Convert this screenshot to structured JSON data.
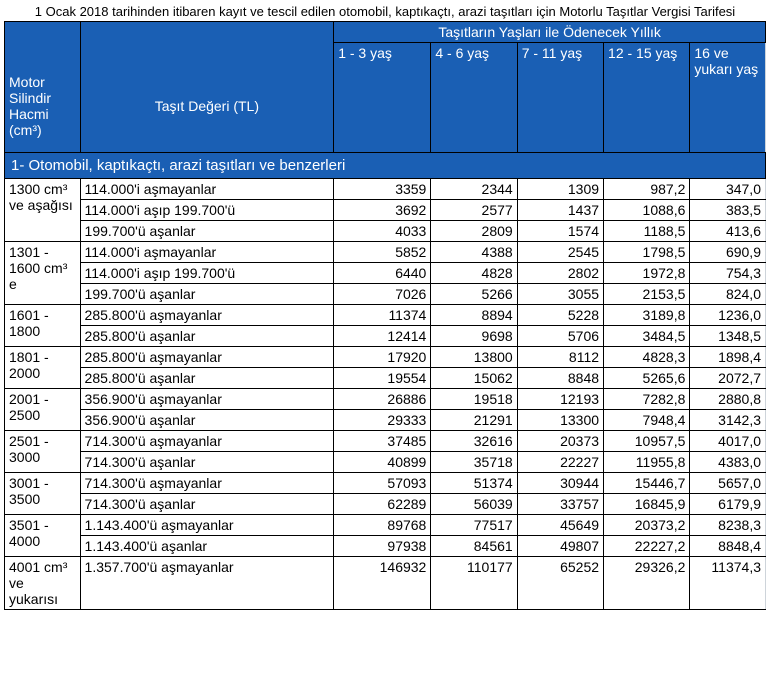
{
  "title": "1 Ocak 2018 tarihinden itibaren kayıt ve tescil edilen otomobil, kaptıkaçtı, arazi taşıtları için Motorlu Taşıtlar Vergisi Tarifesi",
  "header": {
    "engine": "Motor Silindir Hacmi (cm³)",
    "value": "Taşıt Değeri (TL)",
    "group": "Taşıtların Yaşları ile Ödenecek Yıllık",
    "ages": [
      "1 - 3 yaş",
      "4 - 6 yaş",
      "7 - 11 yaş",
      "12 - 15 yaş",
      "16 ve yukarı yaş"
    ]
  },
  "section": "1- Otomobil, kaptıkaçtı, arazi taşıtları ve benzerleri",
  "groups": [
    {
      "engine": "1300 cm³ ve aşağısı",
      "rows": [
        {
          "desc": "114.000'i aşmayanlar",
          "v": [
            "3359",
            "2344",
            "1309",
            "987,2",
            "347,0"
          ]
        },
        {
          "desc": "114.000'i aşıp 199.700'ü",
          "v": [
            "3692",
            "2577",
            "1437",
            "1088,6",
            "383,5"
          ]
        },
        {
          "desc": "199.700'ü aşanlar",
          "v": [
            "4033",
            "2809",
            "1574",
            "1188,5",
            "413,6"
          ]
        }
      ]
    },
    {
      "engine": "1301 - 1600 cm³ e",
      "rows": [
        {
          "desc": "114.000'i aşmayanlar",
          "v": [
            "5852",
            "4388",
            "2545",
            "1798,5",
            "690,9"
          ]
        },
        {
          "desc": "114.000'i aşıp 199.700'ü",
          "v": [
            "6440",
            "4828",
            "2802",
            "1972,8",
            "754,3"
          ]
        },
        {
          "desc": "199.700'ü aşanlar",
          "v": [
            "7026",
            "5266",
            "3055",
            "2153,5",
            "824,0"
          ]
        }
      ]
    },
    {
      "engine": "1601 - 1800",
      "rows": [
        {
          "desc": "285.800'ü aşmayanlar",
          "v": [
            "11374",
            "8894",
            "5228",
            "3189,8",
            "1236,0"
          ]
        },
        {
          "desc": "285.800'ü aşanlar",
          "v": [
            "12414",
            "9698",
            "5706",
            "3484,5",
            "1348,5"
          ]
        }
      ]
    },
    {
      "engine": "1801 - 2000",
      "rows": [
        {
          "desc": "285.800'ü aşmayanlar",
          "v": [
            "17920",
            "13800",
            "8112",
            "4828,3",
            "1898,4"
          ]
        },
        {
          "desc": "285.800'ü aşanlar",
          "v": [
            "19554",
            "15062",
            "8848",
            "5265,6",
            "2072,7"
          ]
        }
      ]
    },
    {
      "engine": "2001 - 2500",
      "rows": [
        {
          "desc": "356.900'ü aşmayanlar",
          "v": [
            "26886",
            "19518",
            "12193",
            "7282,8",
            "2880,8"
          ]
        },
        {
          "desc": "356.900'ü aşanlar",
          "v": [
            "29333",
            "21291",
            "13300",
            "7948,4",
            "3142,3"
          ]
        }
      ]
    },
    {
      "engine": "2501 - 3000",
      "rows": [
        {
          "desc": "714.300'ü aşmayanlar",
          "v": [
            "37485",
            "32616",
            "20373",
            "10957,5",
            "4017,0"
          ]
        },
        {
          "desc": "714.300'ü aşanlar",
          "v": [
            "40899",
            "35718",
            "22227",
            "11955,8",
            "4383,0"
          ]
        }
      ]
    },
    {
      "engine": "3001 - 3500",
      "rows": [
        {
          "desc": "714.300'ü aşmayanlar",
          "v": [
            "57093",
            "51374",
            "30944",
            "15446,7",
            "5657,0"
          ]
        },
        {
          "desc": "714.300'ü aşanlar",
          "v": [
            "62289",
            "56039",
            "33757",
            "16845,9",
            "6179,9"
          ]
        }
      ]
    },
    {
      "engine": "3501 - 4000",
      "rows": [
        {
          "desc": "1.143.400'ü aşmayanlar",
          "v": [
            "89768",
            "77517",
            "45649",
            "20373,2",
            "8238,3"
          ]
        },
        {
          "desc": "1.143.400'ü aşanlar",
          "v": [
            "97938",
            "84561",
            "49807",
            "22227,2",
            "8848,4"
          ]
        }
      ]
    },
    {
      "engine": "4001 cm³ ve yukarısı",
      "rows": [
        {
          "desc": "1.357.700'ü aşmayanlar",
          "v": [
            "146932",
            "110177",
            "65252",
            "29326,2",
            "11374,3"
          ]
        }
      ]
    }
  ],
  "colors": {
    "header_bg": "#1a5fb4",
    "header_fg": "#ffffff",
    "border": "#000000"
  }
}
